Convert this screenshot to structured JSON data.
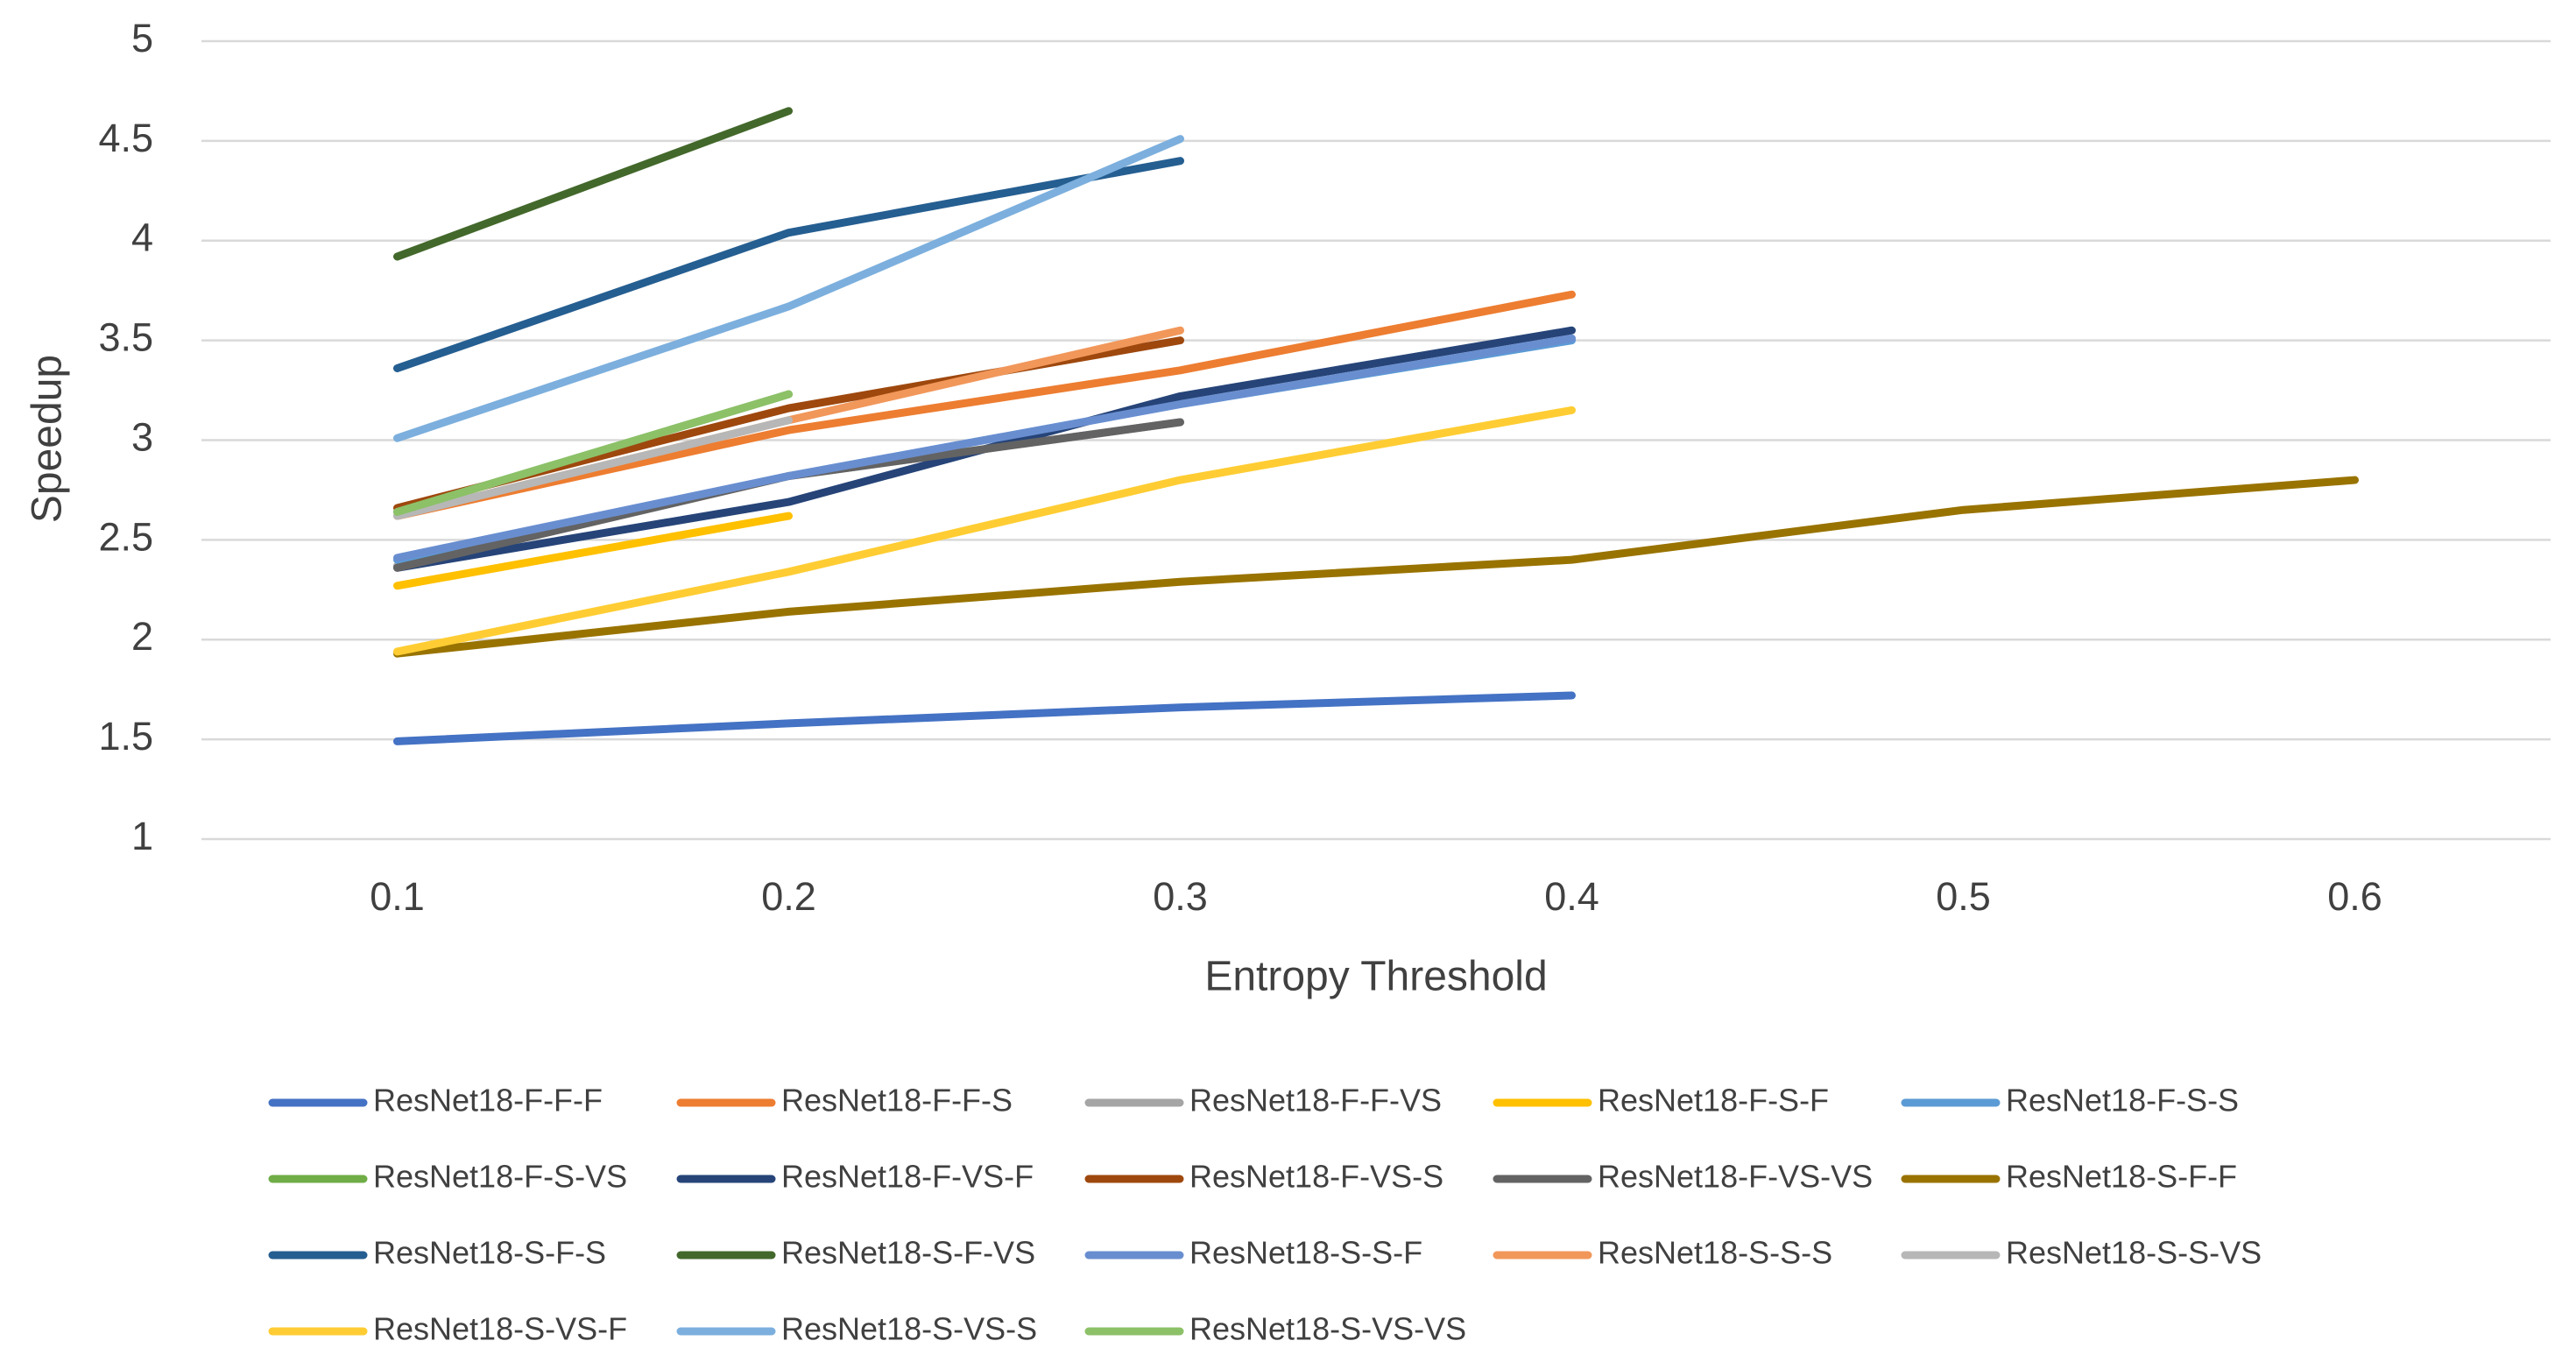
{
  "chart_data": {
    "type": "line",
    "x_label": "Entropy Threshold",
    "y_label": "Speedup",
    "categories": [
      "0.1",
      "0.2",
      "0.3",
      "0.4",
      "0.5",
      "0.6"
    ],
    "ylim": [
      1,
      5
    ],
    "yticks": [
      1,
      1.5,
      2,
      2.5,
      3,
      3.5,
      4,
      4.5,
      5
    ],
    "grid": true,
    "legend": "bottom",
    "series": [
      {
        "name": "ResNet18-F-F-F",
        "color": "#4472c4",
        "values": [
          1.49,
          1.58,
          1.66,
          1.72,
          null,
          null
        ]
      },
      {
        "name": "ResNet18-F-F-S",
        "color": "#ed7d31",
        "values": [
          2.62,
          3.05,
          3.35,
          3.73,
          null,
          null
        ]
      },
      {
        "name": "ResNet18-F-F-VS",
        "color": "#a5a5a5",
        "values": [
          2.37,
          2.82,
          3.09,
          null,
          null,
          null
        ]
      },
      {
        "name": "ResNet18-F-S-F",
        "color": "#ffc000",
        "values": [
          2.27,
          2.62,
          null,
          null,
          null,
          null
        ]
      },
      {
        "name": "ResNet18-F-S-S",
        "color": "#5b9bd5",
        "values": [
          2.4,
          2.82,
          3.18,
          3.5,
          null,
          null
        ]
      },
      {
        "name": "ResNet18-F-S-VS",
        "color": "#70ad47",
        "values": [
          2.64,
          3.23,
          null,
          null,
          null,
          null
        ]
      },
      {
        "name": "ResNet18-F-VS-F",
        "color": "#264478",
        "values": [
          2.36,
          2.69,
          3.22,
          3.55,
          null,
          null
        ]
      },
      {
        "name": "ResNet18-F-VS-S",
        "color": "#9e480e",
        "values": [
          2.66,
          3.16,
          3.5,
          null,
          null,
          null
        ]
      },
      {
        "name": "ResNet18-F-VS-VS",
        "color": "#636363",
        "values": [
          2.36,
          2.82,
          3.09,
          null,
          null,
          null
        ]
      },
      {
        "name": "ResNet18-S-F-F",
        "color": "#997300",
        "values": [
          1.93,
          2.14,
          2.29,
          2.4,
          2.65,
          2.8
        ]
      },
      {
        "name": "ResNet18-S-F-S",
        "color": "#255e91",
        "values": [
          3.36,
          4.04,
          4.4,
          null,
          null,
          null
        ]
      },
      {
        "name": "ResNet18-S-F-VS",
        "color": "#43682b",
        "values": [
          3.92,
          4.65,
          null,
          null,
          null,
          null
        ]
      },
      {
        "name": "ResNet18-S-S-F",
        "color": "#698ed0",
        "values": [
          2.41,
          2.82,
          3.18,
          3.51,
          null,
          null
        ]
      },
      {
        "name": "ResNet18-S-S-S",
        "color": "#f1975a",
        "values": [
          2.62,
          3.1,
          3.55,
          null,
          null,
          null
        ]
      },
      {
        "name": "ResNet18-S-S-VS",
        "color": "#b7b7b7",
        "values": [
          2.62,
          3.1,
          null,
          null,
          null,
          null
        ]
      },
      {
        "name": "ResNet18-S-VS-F",
        "color": "#ffcd33",
        "values": [
          1.94,
          2.34,
          2.8,
          3.15,
          null,
          null
        ]
      },
      {
        "name": "ResNet18-S-VS-S",
        "color": "#7cafdd",
        "values": [
          3.01,
          3.67,
          4.51,
          null,
          null,
          null
        ]
      },
      {
        "name": "ResNet18-S-VS-VS",
        "color": "#8cc168",
        "values": [
          2.64,
          3.23,
          null,
          null,
          null,
          null
        ]
      }
    ]
  }
}
